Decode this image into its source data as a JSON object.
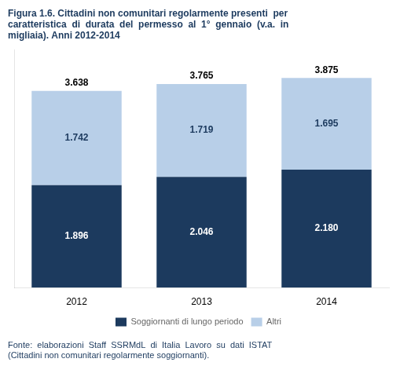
{
  "chart_data": {
    "type": "bar",
    "title": "Figura 1.6. Cittadini non comunitari regolarmente presenti  per\ncaratteristica  di  durata  del  permesso  al  1°  gennaio  (v.a.  in\nmigliaia). Anni 2012-2014",
    "categories": [
      "2012",
      "2013",
      "2014"
    ],
    "series": [
      {
        "name": "Soggiornanti di lungo periodo",
        "color": "#1c3a5e",
        "values": [
          1.896,
          2.046,
          2.18
        ],
        "value_labels": [
          "1.896",
          "2.046",
          "2.180"
        ]
      },
      {
        "name": "Altri",
        "color": "#b8cfe8",
        "values": [
          1.742,
          1.719,
          1.695
        ],
        "value_labels": [
          "1.742",
          "1.719",
          "1.695"
        ]
      }
    ],
    "totals": [
      3.638,
      3.765,
      3.875
    ],
    "annotations": [
      "Fonte:  elaborazioni  Staff  SSRMdL  di  Italia  Lavoro  su  dati  ISTAT",
      "(Cittadini non comunitari regolarmente soggiornanti)."
    ],
    "ylim": [
      0,
      4.4
    ],
    "stacked": true,
    "data_labels": true,
    "tick_labels": "x",
    "grid": false,
    "legend": "bottom"
  }
}
